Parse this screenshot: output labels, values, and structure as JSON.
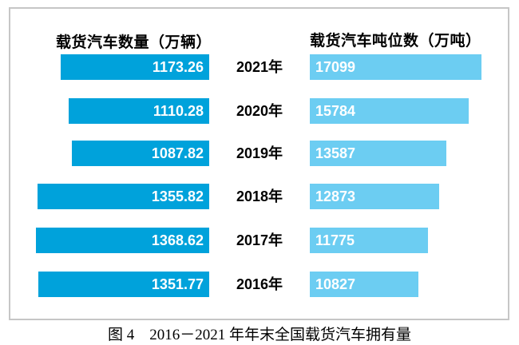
{
  "figure": {
    "caption": "图 4　2016－2021 年年末全国载货汽车拥有量",
    "left_header": "载货汽车数量（万辆）",
    "right_header": "载货汽车吨位数（万吨）"
  },
  "colors": {
    "left_bar": "#00a2db",
    "right_bar": "#6ccdf2",
    "frame_border": "#c6c6c6",
    "value_text": "#ffffff",
    "label_text": "#000000"
  },
  "rows": [
    {
      "year": "2021年",
      "left": "1173.26",
      "right": "17099"
    },
    {
      "year": "2020年",
      "left": "1110.28",
      "right": "15784"
    },
    {
      "year": "2019年",
      "left": "1087.82",
      "right": "13587"
    },
    {
      "year": "2018年",
      "left": "1355.82",
      "right": "12873"
    },
    {
      "year": "2017年",
      "left": "1368.62",
      "right": "11775"
    },
    {
      "year": "2016年",
      "left": "1351.77",
      "right": "10827"
    }
  ],
  "chart_data": {
    "type": "bar",
    "orientation": "horizontal",
    "title": "图 4　2016－2021 年年末全国载货汽车拥有量",
    "categories": [
      "2021年",
      "2020年",
      "2019年",
      "2018年",
      "2017年",
      "2016年"
    ],
    "series": [
      {
        "name": "载货汽车数量（万辆）",
        "values": [
          1173.26,
          1110.28,
          1087.82,
          1355.82,
          1368.62,
          1351.77
        ]
      },
      {
        "name": "载货汽车吨位数（万吨）",
        "values": [
          17099,
          15784,
          13587,
          12873,
          11775,
          10827
        ]
      }
    ],
    "data_labels": "inside-bar",
    "layout": "mirrored tornado chart, years centered between the two bar groups, left series right-aligned, right series left-aligned, no axes or gridlines"
  }
}
